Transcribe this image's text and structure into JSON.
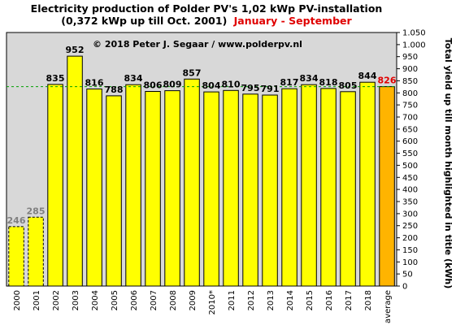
{
  "chart_data": {
    "type": "bar",
    "title_line1": "Electricity production  of Polder  PV's  1,02 kWp PV-installation",
    "title_line2": "(0,372 kWp up till Oct. 2001)",
    "title_highlight": "January - September",
    "copyright": "© 2018 Peter J. Segaar / www.polderpv.nl",
    "ylabel": "Total yield up till month highlighted in title (kWh)",
    "ylim": [
      0,
      1050
    ],
    "ytick_step": 50,
    "grid": false,
    "categories": [
      "2000",
      "2001",
      "2002",
      "2003",
      "2004",
      "2005",
      "2006",
      "2007",
      "2008",
      "2009",
      "2010*",
      "2011",
      "2012",
      "2013",
      "2014",
      "2015",
      "2016",
      "2017",
      "2018",
      "average"
    ],
    "values": [
      246,
      285,
      835,
      952,
      816,
      788,
      834,
      806,
      809,
      857,
      804,
      810,
      795,
      791,
      817,
      834,
      818,
      805,
      844,
      826
    ],
    "value_labels": [
      "246",
      "285",
      "835",
      "952",
      "816",
      "788",
      "834",
      "806",
      "809",
      "857",
      "804",
      "810",
      "795",
      "791",
      "817",
      "834",
      "818",
      "805",
      "844",
      "826"
    ],
    "bar_styles": [
      "partial",
      "partial",
      "full",
      "full",
      "full",
      "full",
      "full",
      "full",
      "full",
      "full",
      "full",
      "full",
      "full",
      "full",
      "full",
      "full",
      "full",
      "full",
      "full",
      "average"
    ],
    "label_colors": [
      "#808080",
      "#808080",
      "#000000",
      "#000000",
      "#000000",
      "#000000",
      "#000000",
      "#000000",
      "#000000",
      "#000000",
      "#000000",
      "#000000",
      "#000000",
      "#000000",
      "#000000",
      "#000000",
      "#000000",
      "#000000",
      "#000000",
      "#e00000"
    ],
    "average_line": 826,
    "colors": {
      "bar": "#ffff00",
      "average_bar": "#ffb400",
      "plot_bg": "#d8d8d8",
      "average_line": "#00a000",
      "highlight_text": "#e00000",
      "partial_label": "#808080"
    }
  }
}
